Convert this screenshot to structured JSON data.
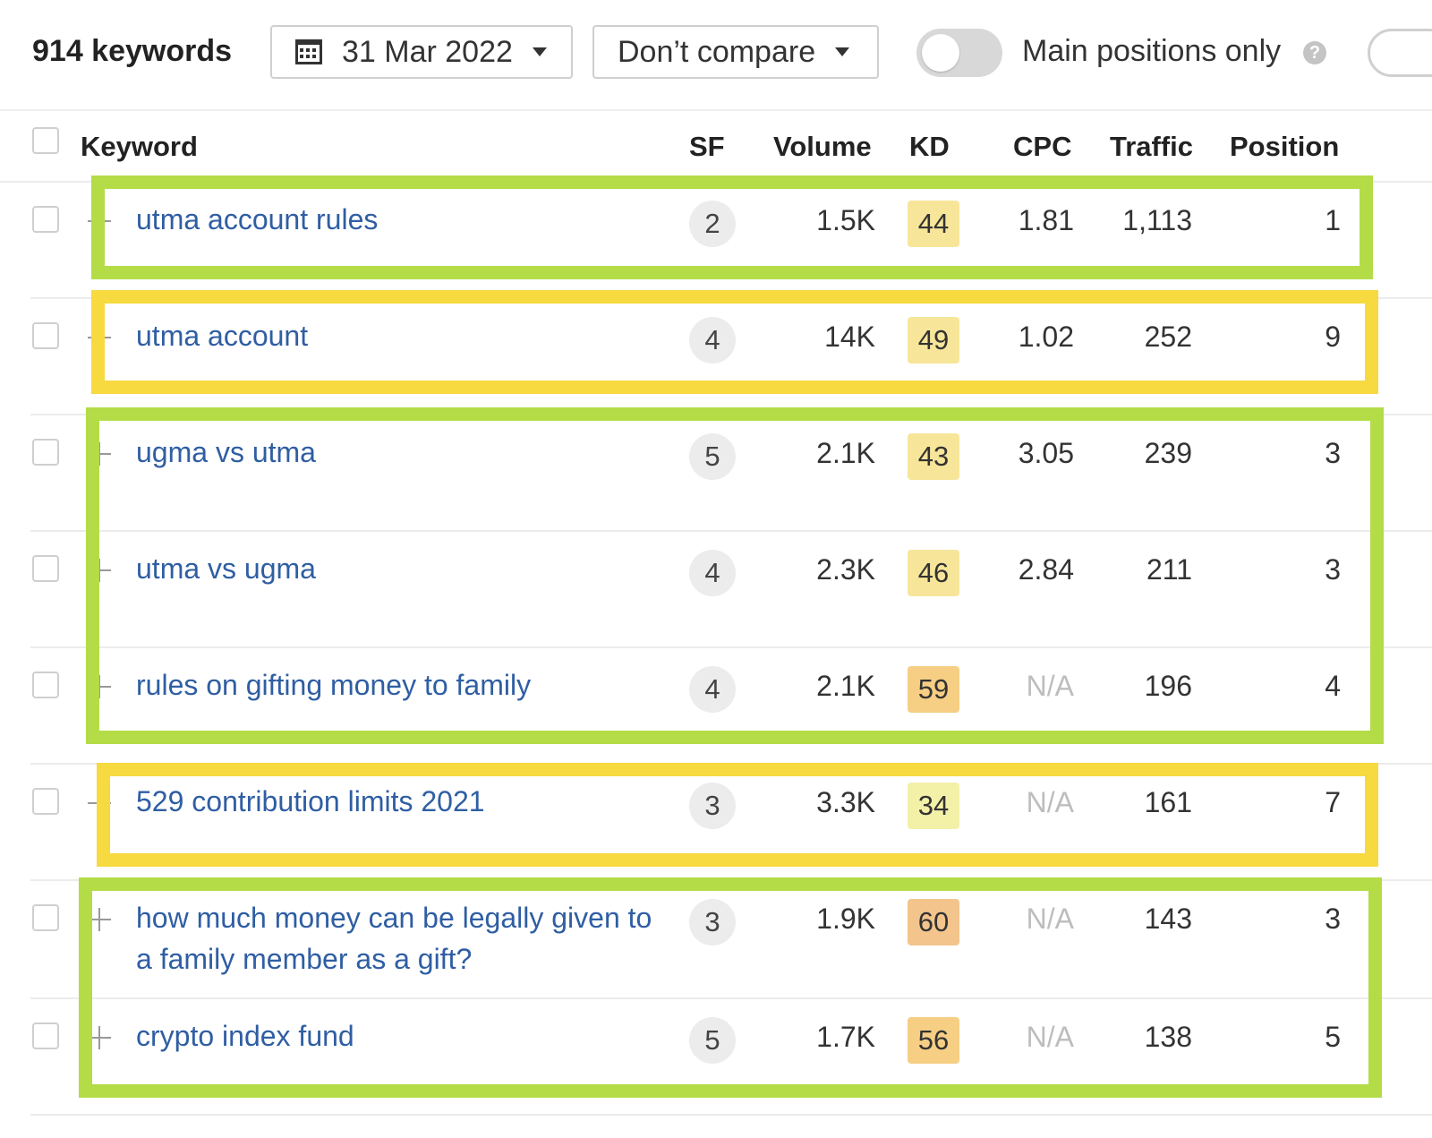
{
  "toolbar": {
    "keyword_count": "914 keywords",
    "date_label": "31 Mar 2022",
    "compare_label": "Don’t compare",
    "main_positions_label": "Main positions only",
    "help_glyph": "?"
  },
  "table": {
    "headers": {
      "keyword": "Keyword",
      "sf": "SF",
      "volume": "Volume",
      "kd": "KD",
      "cpc": "CPC",
      "traffic": "Traffic",
      "position": "Position"
    },
    "rows": [
      {
        "keyword": "utma account rules",
        "sf": "2",
        "volume": "1.5K",
        "kd": "44",
        "cpc": "1.81",
        "traffic": "1,113",
        "position": "1",
        "expander": "minus"
      },
      {
        "keyword": "utma account",
        "sf": "4",
        "volume": "14K",
        "kd": "49",
        "cpc": "1.02",
        "traffic": "252",
        "position": "9",
        "expander": "minus"
      },
      {
        "keyword": "ugma vs utma",
        "sf": "5",
        "volume": "2.1K",
        "kd": "43",
        "cpc": "3.05",
        "traffic": "239",
        "position": "3",
        "expander": "plus"
      },
      {
        "keyword": "utma vs ugma",
        "sf": "4",
        "volume": "2.3K",
        "kd": "46",
        "cpc": "2.84",
        "traffic": "211",
        "position": "3",
        "expander": "plus"
      },
      {
        "keyword": "rules on gifting money to family",
        "sf": "4",
        "volume": "2.1K",
        "kd": "59",
        "cpc": "N/A",
        "traffic": "196",
        "position": "4",
        "expander": "plus"
      },
      {
        "keyword": "529 contribution limits 2021",
        "sf": "3",
        "volume": "3.3K",
        "kd": "34",
        "cpc": "N/A",
        "traffic": "161",
        "position": "7",
        "expander": "minus"
      },
      {
        "keyword": "how much money can be legally given to a family member as a gift?",
        "sf": "3",
        "volume": "1.9K",
        "kd": "60",
        "cpc": "N/A",
        "traffic": "143",
        "position": "3",
        "expander": "plus"
      },
      {
        "keyword": "crypto index fund",
        "sf": "5",
        "volume": "1.7K",
        "kd": "56",
        "cpc": "N/A",
        "traffic": "138",
        "position": "5",
        "expander": "plus"
      }
    ]
  },
  "colors": {
    "link": "#2f5ea3",
    "highlight_green": "#b3dc47",
    "highlight_yellow": "#f7d940",
    "kd_low": "#f3f0a8",
    "kd_mid": "#f7e69a",
    "kd_high": "#f6cf84",
    "kd_higher": "#f3c48c"
  }
}
